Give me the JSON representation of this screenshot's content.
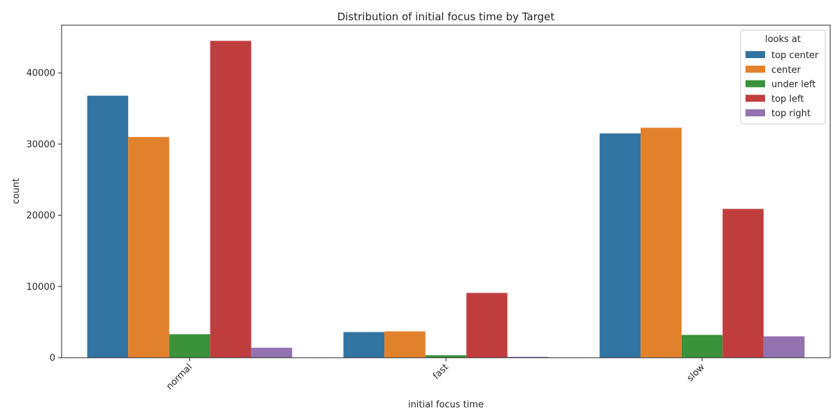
{
  "chart_data": {
    "type": "bar",
    "title": "Distribution of initial focus time by Target",
    "xlabel": "initial focus time",
    "ylabel": "count",
    "categories": [
      "normal",
      "fast",
      "slow"
    ],
    "ylim": [
      0,
      46700
    ],
    "yticks": [
      0,
      10000,
      20000,
      30000,
      40000
    ],
    "grid": false,
    "legend": {
      "title": "looks at",
      "placement": "top-right"
    },
    "series": [
      {
        "name": "top center",
        "color": "#3274a1",
        "values": [
          36800,
          3600,
          31500
        ]
      },
      {
        "name": "center",
        "color": "#e1812c",
        "values": [
          31000,
          3700,
          32300
        ]
      },
      {
        "name": "under left",
        "color": "#3a923a",
        "values": [
          3300,
          350,
          3200
        ]
      },
      {
        "name": "top left",
        "color": "#c03d3e",
        "values": [
          44500,
          9100,
          20900
        ]
      },
      {
        "name": "top right",
        "color": "#9372b2",
        "values": [
          1400,
          120,
          3000
        ]
      }
    ]
  }
}
